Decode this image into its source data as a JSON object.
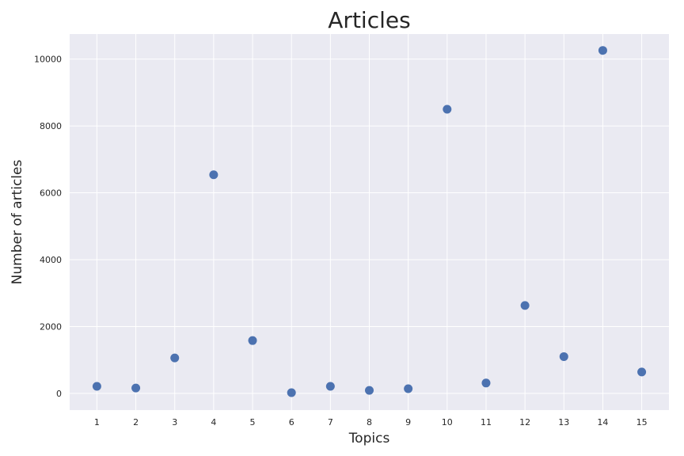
{
  "chart_data": {
    "type": "scatter",
    "title": "Articles",
    "xlabel": "Topics",
    "ylabel": "Number of articles",
    "x": [
      1,
      2,
      3,
      4,
      5,
      6,
      7,
      8,
      9,
      10,
      11,
      12,
      13,
      14,
      15
    ],
    "y": [
      210,
      160,
      1060,
      6540,
      1580,
      20,
      210,
      90,
      140,
      8500,
      310,
      2630,
      1100,
      10260,
      640
    ],
    "x_ticks": [
      "1",
      "2",
      "3",
      "4",
      "5",
      "6",
      "7",
      "8",
      "9",
      "10",
      "11",
      "12",
      "13",
      "14",
      "15"
    ],
    "y_ticks": [
      "0",
      "2000",
      "4000",
      "6000",
      "8000",
      "10000"
    ],
    "xlim": [
      0.3,
      15.7
    ],
    "ylim": [
      -500,
      10750
    ],
    "grid": true,
    "colors": {
      "background": "#eaeaf2",
      "grid": "#ffffff",
      "marker": "#4c72b0"
    }
  }
}
